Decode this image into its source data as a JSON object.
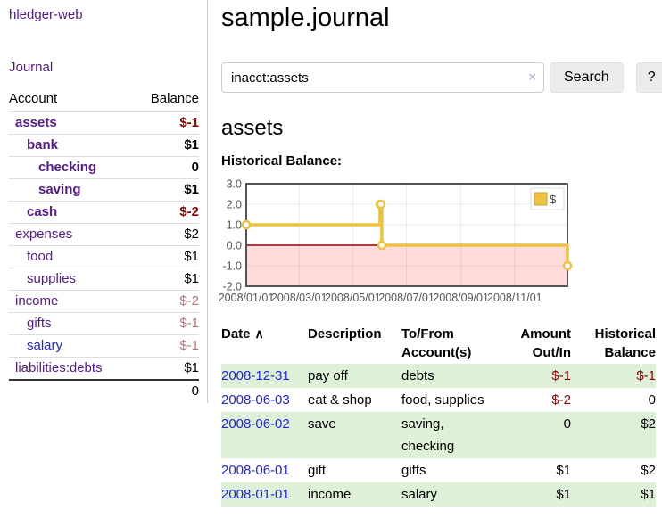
{
  "colors": {
    "link_purple": "#551a8b",
    "link_blue": "#2323dd",
    "negative_strong": "#8b0000",
    "negative_soft": "#b3737a",
    "row_shade_green": "#dff0d8"
  },
  "sidebar": {
    "app_title": "hledger-web",
    "nav": {
      "journal_label": "Journal"
    },
    "accounts_table": {
      "headers": {
        "account": "Account",
        "balance": "Balance"
      },
      "rows": [
        {
          "label": "assets",
          "indent": 1,
          "bold": true,
          "balance": "$-1",
          "balance_class": "neg-strong",
          "link_class": "purple"
        },
        {
          "label": "bank",
          "indent": 2,
          "bold": true,
          "balance": "$1",
          "balance_class": "plain",
          "link_class": "purple"
        },
        {
          "label": "checking",
          "indent": 3,
          "bold": true,
          "balance": "0",
          "balance_class": "plain",
          "link_class": "purple"
        },
        {
          "label": "saving",
          "indent": 3,
          "bold": true,
          "balance": "$1",
          "balance_class": "plain",
          "link_class": "purple"
        },
        {
          "label": "cash",
          "indent": 2,
          "bold": true,
          "balance": "$-2",
          "balance_class": "neg-strong",
          "link_class": "purple"
        },
        {
          "label": "expenses",
          "indent": 1,
          "bold": false,
          "balance": "$2",
          "balance_class": "plain",
          "link_class": "purple"
        },
        {
          "label": "food",
          "indent": 2,
          "bold": false,
          "balance": "$1",
          "balance_class": "plain",
          "link_class": "purple"
        },
        {
          "label": "supplies",
          "indent": 2,
          "bold": false,
          "balance": "$1",
          "balance_class": "plain",
          "link_class": "purple"
        },
        {
          "label": "income",
          "indent": 1,
          "bold": false,
          "balance": "$-2",
          "balance_class": "neg-soft",
          "link_class": "purple"
        },
        {
          "label": "gifts",
          "indent": 2,
          "bold": false,
          "balance": "$-1",
          "balance_class": "neg-soft",
          "link_class": "purple"
        },
        {
          "label": "salary",
          "indent": 2,
          "bold": false,
          "balance": "$-1",
          "balance_class": "neg-soft",
          "link_class": "blue"
        },
        {
          "label": "liabilities:debts",
          "indent": 1,
          "bold": false,
          "balance": "$1",
          "balance_class": "plain",
          "link_class": "purple"
        }
      ],
      "total": "0"
    }
  },
  "header": {
    "title": "sample.journal"
  },
  "search": {
    "value": "inacct:assets",
    "clear_icon": "×",
    "button_label": "Search",
    "help_label": "?"
  },
  "account_page": {
    "title": "assets",
    "chart_label": "Historical Balance:"
  },
  "chart_data": {
    "type": "line",
    "title": "Historical Balance",
    "series": [
      {
        "name": "$",
        "step": true,
        "points": [
          [
            "2008-01-01",
            1
          ],
          [
            "2008-06-01",
            2
          ],
          [
            "2008-06-02",
            2
          ],
          [
            "2008-06-03",
            0
          ],
          [
            "2008-12-31",
            -1
          ]
        ]
      }
    ],
    "x_range": [
      "2008-01-01",
      "2008-12-31"
    ],
    "x_tick_dates": [
      "2008-01-01",
      "2008-03-01",
      "2008-05-01",
      "2008-07-01",
      "2008-09-01",
      "2008-11-01"
    ],
    "x_tick_labels": [
      "2008/01/01",
      "2008/03/01",
      "2008/05/01",
      "2008/07/01",
      "2008/09/01",
      "2008/11/01"
    ],
    "y_ticks": [
      "3.0",
      "2.0",
      "1.0",
      "0.0",
      "-1.0",
      "-2.0"
    ],
    "ylim": [
      -2,
      3
    ],
    "grid": true,
    "negative_region": true,
    "legend": {
      "position": "top-right",
      "label": "$"
    },
    "colors": {
      "line": "#edc240",
      "marker_fill": "#ffffff",
      "negative_region": "#ffdcdc",
      "zero_line": "#8b0000",
      "frame": "#545454"
    }
  },
  "register_table": {
    "headers": {
      "date": "Date",
      "sort_icon": "∧",
      "description": "Description",
      "tofrom": "To/From\nAccount(s)",
      "amount": "Amount\nOut/In",
      "balance": "Historical\nBalance"
    },
    "rows": [
      {
        "date": "2008-12-31",
        "description": "pay off",
        "tofrom": "debts",
        "amount": "$-1",
        "amount_class": "neg-strong",
        "balance": "$-1",
        "balance_class": "neg-strong",
        "shaded": true
      },
      {
        "date": "2008-06-03",
        "description": "eat & shop",
        "tofrom": "food, supplies",
        "amount": "$-2",
        "amount_class": "neg-strong",
        "balance": "0",
        "balance_class": "plain",
        "shaded": false
      },
      {
        "date": "2008-06-02",
        "description": "save",
        "tofrom": "saving,\nchecking",
        "amount": "0",
        "amount_class": "plain",
        "balance": "$2",
        "balance_class": "plain",
        "shaded": true
      },
      {
        "date": "2008-06-01",
        "description": "gift",
        "tofrom": "gifts",
        "amount": "$1",
        "amount_class": "plain",
        "balance": "$2",
        "balance_class": "plain",
        "shaded": false
      },
      {
        "date": "2008-01-01",
        "description": "income",
        "tofrom": "salary",
        "amount": "$1",
        "amount_class": "plain",
        "balance": "$1",
        "balance_class": "plain",
        "shaded": true
      }
    ]
  }
}
